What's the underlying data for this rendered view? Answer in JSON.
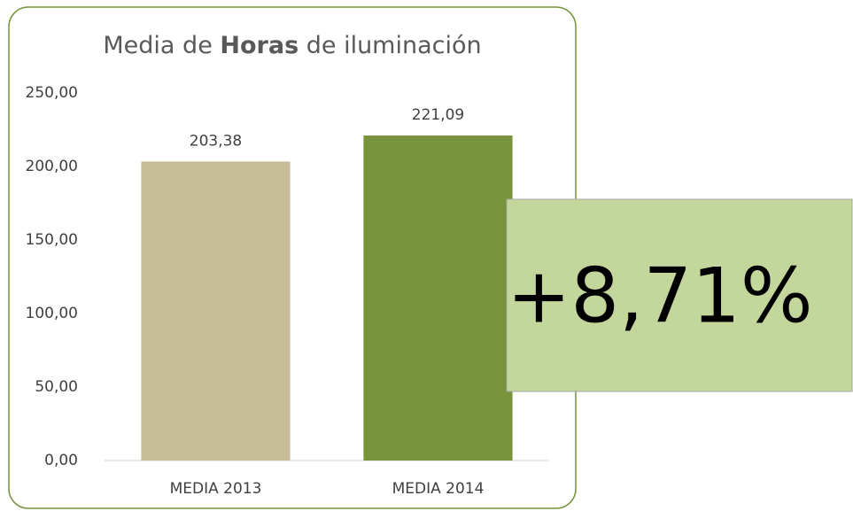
{
  "chart_data": {
    "type": "bar",
    "title": [
      "Media de ",
      "Horas",
      " de iluminación"
    ],
    "categories": [
      "MEDIA 2013",
      "MEDIA 2014"
    ],
    "series": [
      {
        "name": null,
        "colors": [
          "#c4bd97",
          "#77933c"
        ],
        "values": [
          203.38,
          221.09
        ],
        "value_labels": [
          "203,38",
          "221,09"
        ]
      }
    ],
    "ylim": [
      0,
      250
    ],
    "yticks": [
      {
        "value": 0,
        "label": "0,00"
      },
      {
        "value": 50,
        "label": "50,00"
      },
      {
        "value": 100,
        "label": "100,00"
      },
      {
        "value": 150,
        "label": "150,00"
      },
      {
        "value": 200,
        "label": "200,00"
      },
      {
        "value": 250,
        "label": "250,00"
      }
    ],
    "grid": false,
    "annotation": {
      "text": "+8,71%",
      "color": "#c3d69b"
    }
  }
}
